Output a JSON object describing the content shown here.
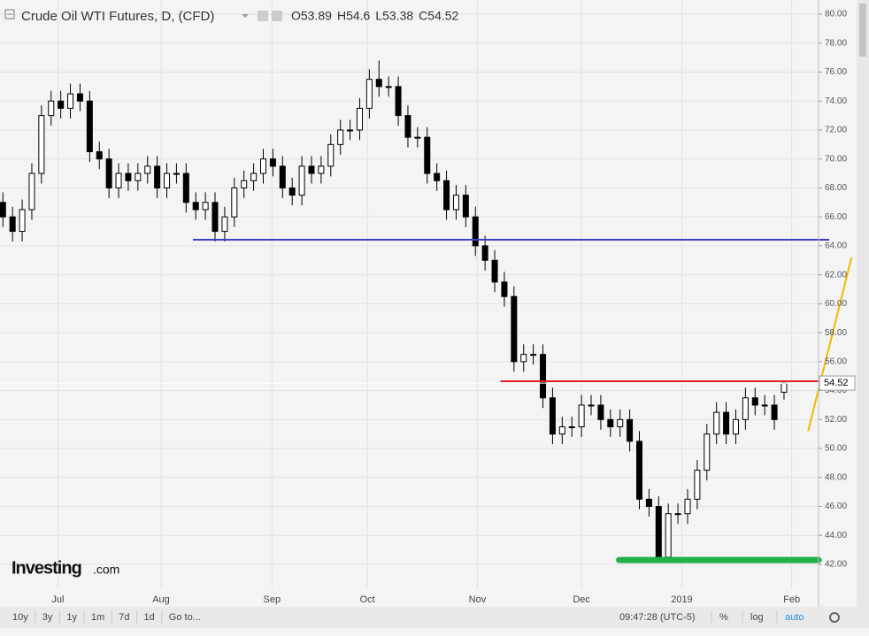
{
  "chart_data": {
    "type": "candlestick",
    "title": "Crude Oil WTI Futures, D, (CFD)",
    "legend_fields": [
      "O",
      "H",
      "L",
      "C"
    ],
    "open": [
      67,
      66,
      65,
      66.5,
      69,
      73,
      74,
      73.5,
      74.5,
      74,
      70.5,
      70,
      68,
      69,
      68.5,
      69,
      69.5,
      68,
      69,
      69,
      67,
      66.5,
      67,
      65,
      66,
      68,
      68.5,
      69,
      70,
      69.5,
      68,
      67.5,
      69.5,
      69,
      69.5,
      71,
      72,
      72,
      73.5,
      75.5,
      75,
      75,
      73,
      71.5,
      71.5,
      69,
      68.5,
      66.5,
      67.5,
      66,
      64,
      63,
      61.5,
      60.5,
      56,
      56.5,
      56.5,
      53.5,
      51,
      51.5,
      51.5,
      53,
      53,
      52,
      51.5,
      52,
      50.5,
      46.5,
      46,
      42.5,
      45.5,
      45.5,
      46.5,
      48.5,
      51,
      52.5,
      51,
      52,
      53.5,
      53,
      53,
      53.89
    ],
    "high": [
      67.7,
      66.7,
      67.2,
      69.7,
      73.7,
      74.7,
      74.7,
      75.2,
      75.2,
      74.7,
      71.2,
      70.7,
      69.7,
      69.7,
      69.7,
      70.2,
      70.2,
      69.7,
      69.7,
      69.7,
      67.7,
      67.7,
      67.7,
      66.7,
      68.7,
      69.2,
      69.7,
      70.7,
      70.7,
      70.2,
      68.7,
      70.2,
      70.2,
      70.2,
      71.7,
      72.7,
      72.7,
      74.2,
      76.2,
      76.8,
      75.7,
      75.7,
      73.7,
      72.2,
      72.2,
      69.7,
      69.2,
      68.2,
      68.2,
      66.7,
      64.7,
      63.7,
      62.2,
      61.2,
      57.2,
      57.2,
      57.2,
      54.2,
      52.2,
      52.2,
      53.7,
      53.7,
      53.7,
      52.7,
      52.7,
      52.7,
      51.2,
      47.2,
      46.7,
      46.2,
      46.2,
      47.2,
      49.2,
      51.7,
      53.2,
      53.2,
      52.7,
      54.2,
      54.2,
      53.7,
      53.7,
      54.6
    ],
    "low": [
      65.3,
      64.3,
      64.3,
      65.8,
      68.3,
      72.3,
      72.8,
      72.8,
      73.3,
      69.8,
      69.3,
      67.3,
      67.3,
      67.8,
      67.8,
      68.3,
      67.3,
      67.3,
      68.3,
      66.3,
      65.8,
      65.8,
      64.3,
      64.3,
      65.3,
      67.3,
      67.8,
      68.3,
      68.8,
      67.3,
      66.8,
      66.8,
      68.3,
      68.3,
      68.8,
      70.3,
      71.3,
      71.3,
      72.8,
      74.3,
      74.3,
      72.3,
      70.8,
      70.8,
      68.3,
      67.8,
      65.8,
      65.8,
      65.3,
      63.3,
      62.3,
      60.8,
      59.8,
      55.3,
      55.3,
      55.8,
      52.8,
      50.3,
      50.3,
      50.8,
      50.8,
      52.3,
      51.3,
      50.8,
      50.8,
      49.8,
      45.8,
      45.3,
      42.4,
      42.4,
      44.8,
      44.8,
      45.8,
      47.8,
      50.3,
      50.3,
      50.3,
      51.3,
      52.3,
      52.3,
      51.3,
      53.38
    ],
    "close": [
      66,
      65,
      66.5,
      69,
      73,
      74,
      73.5,
      74.5,
      74,
      70.5,
      70,
      68,
      69,
      68.5,
      69,
      69.5,
      68,
      69,
      69,
      67,
      66.5,
      67,
      65,
      66,
      68,
      68.5,
      69,
      70,
      69.5,
      68,
      67.5,
      69.5,
      69,
      69.5,
      71,
      72,
      72,
      73.5,
      75.5,
      75,
      75,
      73,
      71.5,
      71.5,
      69,
      68.5,
      66.5,
      67.5,
      66,
      64,
      63,
      61.5,
      60.5,
      56,
      56.5,
      56.5,
      53.5,
      51,
      51.5,
      51.5,
      53,
      53,
      52,
      51.5,
      52,
      50.5,
      46.5,
      46,
      42.5,
      45.5,
      45.5,
      46.5,
      48.5,
      51,
      52.5,
      51,
      52,
      53.5,
      53,
      53,
      52,
      54.52
    ],
    "up_color": "#ffffff",
    "down_color": "#000000",
    "grid": true,
    "xlim": [
      -0.3,
      85.5
    ],
    "xticks": [
      {
        "value": 5.7,
        "label": "Jul"
      },
      {
        "value": 16.4,
        "label": "Aug"
      },
      {
        "value": 27.9,
        "label": "Sep"
      },
      {
        "value": 37.8,
        "label": "Oct"
      },
      {
        "value": 49.2,
        "label": "Nov"
      },
      {
        "value": 60,
        "label": "Dec"
      },
      {
        "value": 70.4,
        "label": "2019"
      },
      {
        "value": 81.8,
        "label": "Feb"
      }
    ],
    "ylim": [
      40.35,
      80.98
    ],
    "yticks": [
      {
        "value": 42,
        "label": "42.00"
      },
      {
        "value": 44,
        "label": "44.00"
      },
      {
        "value": 46,
        "label": "46.00"
      },
      {
        "value": 48,
        "label": "48.00"
      },
      {
        "value": 50,
        "label": "50.00"
      },
      {
        "value": 52,
        "label": "52.00"
      },
      {
        "value": 54,
        "label": "54.00"
      },
      {
        "value": 56,
        "label": "56.00"
      },
      {
        "value": 58,
        "label": "58.00"
      },
      {
        "value": 60,
        "label": "60.00"
      },
      {
        "value": 62,
        "label": "62.00"
      },
      {
        "value": 64,
        "label": "64.00"
      },
      {
        "value": 66,
        "label": "66.00"
      },
      {
        "value": 68,
        "label": "68.00"
      },
      {
        "value": 70,
        "label": "70.00"
      },
      {
        "value": 72,
        "label": "72.00"
      },
      {
        "value": 74,
        "label": "74.00"
      },
      {
        "value": 76,
        "label": "76.00"
      },
      {
        "value": 78,
        "label": "78.00"
      },
      {
        "value": 80,
        "label": "80.00"
      }
    ],
    "levels": [
      {
        "value": 64.42,
        "x": [
          19.7,
          85.8
        ],
        "color": "#3f3fbf"
      },
      {
        "value": 54.65,
        "x": [
          51.6,
          85.5
        ],
        "color": "#e02020"
      },
      {
        "value": 42.3,
        "x": [
          63.9,
          84.6
        ],
        "color": "#22b04a"
      }
    ],
    "trendline": {
      "x": [
        83.5,
        88
      ],
      "y": [
        51.2,
        63.2
      ],
      "color": "#f5b800"
    }
  },
  "logo": {
    "brand": "Investing",
    "suffix": ".com"
  },
  "toolbar": {
    "ranges": [
      "10y",
      "3y",
      "1y",
      "1m",
      "7d",
      "1d"
    ],
    "goto": "Go to...",
    "time": "09:47:28 (UTC-5)",
    "options": [
      "%",
      "log",
      "auto"
    ]
  }
}
